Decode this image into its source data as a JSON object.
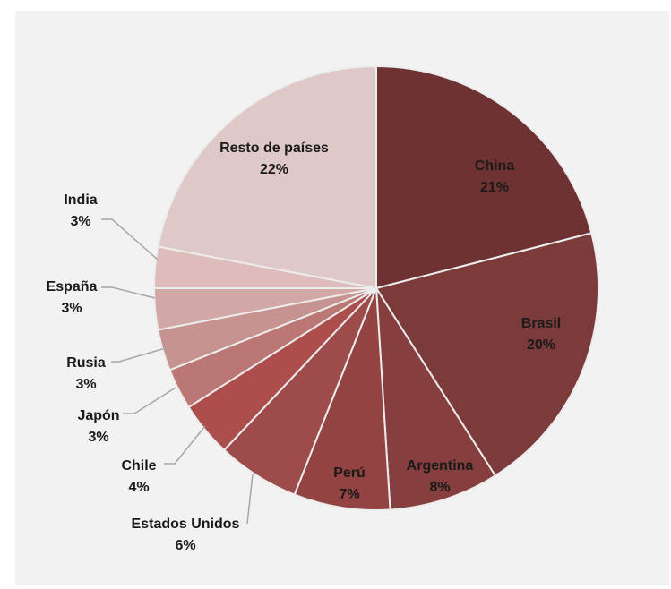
{
  "chart_data": {
    "type": "pie",
    "title": "",
    "slices": [
      {
        "label": "China",
        "value": 21,
        "pct_label": "21%",
        "color": "#6e3232"
      },
      {
        "label": "Brasil",
        "value": 20,
        "pct_label": "20%",
        "color": "#7c3b3b"
      },
      {
        "label": "Argentina",
        "value": 8,
        "pct_label": "8%",
        "color": "#873e3e"
      },
      {
        "label": "Perú",
        "value": 7,
        "pct_label": "7%",
        "color": "#944343"
      },
      {
        "label": "Estados Unidos",
        "value": 6,
        "pct_label": "6%",
        "color": "#9d4c4b"
      },
      {
        "label": "Chile",
        "value": 4,
        "pct_label": "4%",
        "color": "#ac4f4c"
      },
      {
        "label": "Japón",
        "value": 3,
        "pct_label": "3%",
        "color": "#bb7774"
      },
      {
        "label": "Rusia",
        "value": 3,
        "pct_label": "3%",
        "color": "#c79391"
      },
      {
        "label": "España",
        "value": 3,
        "pct_label": "3%",
        "color": "#d2a8a7"
      },
      {
        "label": "India",
        "value": 3,
        "pct_label": "3%",
        "color": "#ddbcbb"
      },
      {
        "label": "Resto de países",
        "value": 22,
        "pct_label": "22%",
        "color": "#dfc8c8"
      }
    ],
    "start": "12 o'clock",
    "direction": "clockwise",
    "legend": "none (data labels)"
  }
}
